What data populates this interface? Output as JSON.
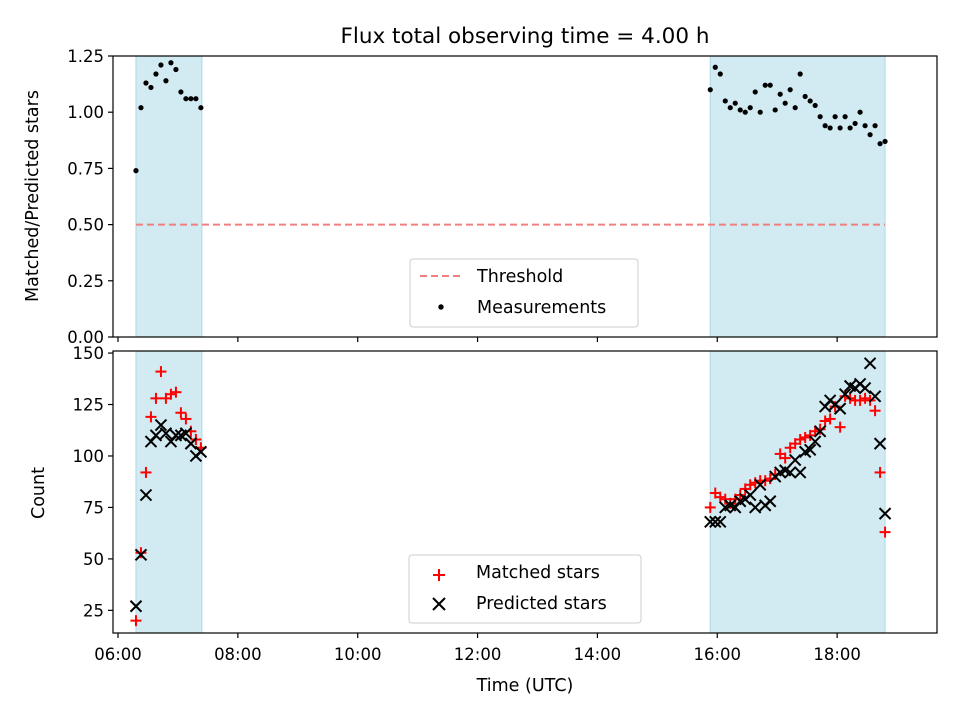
{
  "title": "Flux total observing time = 4.00 h",
  "colors": {
    "shade": "#add8e6",
    "threshold": "#f08080",
    "matched": "#ff0000",
    "predicted": "#000000",
    "measurement": "#000000"
  },
  "chart_data": [
    {
      "type": "scatter",
      "panel": "top",
      "ylabel": "Matched/Predicted stars",
      "ylim": [
        0,
        1.25
      ],
      "yticks": [
        0,
        0.25,
        0.5,
        0.75,
        1.0,
        1.25
      ],
      "ytick_labels": [
        "0.00",
        "0.25",
        "0.50",
        "0.75",
        "1.00",
        "1.25"
      ],
      "xlim": [
        "05:55",
        "19:40"
      ],
      "shaded_intervals": [
        [
          "06:18",
          "07:24"
        ],
        [
          "15:53",
          "18:48"
        ]
      ],
      "threshold": {
        "name": "Threshold",
        "value": 0.5,
        "x_range": [
          "06:18",
          "18:48"
        ],
        "style": "dashed"
      },
      "legend": {
        "position": "lower center",
        "entries": [
          "Threshold",
          "Measurements"
        ]
      },
      "series": [
        {
          "name": "Measurements",
          "marker": "dot",
          "points": [
            [
              "06:18",
              0.74
            ],
            [
              "06:23",
              1.02
            ],
            [
              "06:28",
              1.13
            ],
            [
              "06:33",
              1.11
            ],
            [
              "06:38",
              1.17
            ],
            [
              "06:43",
              1.21
            ],
            [
              "06:48",
              1.14
            ],
            [
              "06:53",
              1.22
            ],
            [
              "06:58",
              1.19
            ],
            [
              "07:03",
              1.09
            ],
            [
              "07:08",
              1.06
            ],
            [
              "07:13",
              1.06
            ],
            [
              "07:18",
              1.06
            ],
            [
              "07:23",
              1.02
            ],
            [
              "15:53",
              1.1
            ],
            [
              "15:58",
              1.2
            ],
            [
              "16:03",
              1.17
            ],
            [
              "16:08",
              1.05
            ],
            [
              "16:13",
              1.02
            ],
            [
              "16:18",
              1.04
            ],
            [
              "16:23",
              1.01
            ],
            [
              "16:28",
              1.0
            ],
            [
              "16:33",
              1.02
            ],
            [
              "16:38",
              1.09
            ],
            [
              "16:43",
              1.0
            ],
            [
              "16:48",
              1.12
            ],
            [
              "16:53",
              1.12
            ],
            [
              "16:58",
              1.01
            ],
            [
              "17:03",
              1.08
            ],
            [
              "17:08",
              1.04
            ],
            [
              "17:13",
              1.1
            ],
            [
              "17:18",
              1.02
            ],
            [
              "17:23",
              1.17
            ],
            [
              "17:28",
              1.07
            ],
            [
              "17:33",
              1.05
            ],
            [
              "17:38",
              1.03
            ],
            [
              "17:43",
              0.98
            ],
            [
              "17:48",
              0.94
            ],
            [
              "17:53",
              0.93
            ],
            [
              "17:58",
              0.98
            ],
            [
              "18:03",
              0.93
            ],
            [
              "18:08",
              0.98
            ],
            [
              "18:13",
              0.93
            ],
            [
              "18:18",
              0.95
            ],
            [
              "18:23",
              1.0
            ],
            [
              "18:28",
              0.94
            ],
            [
              "18:33",
              0.9
            ],
            [
              "18:38",
              0.94
            ],
            [
              "18:43",
              0.86
            ],
            [
              "18:48",
              0.87
            ]
          ]
        }
      ]
    },
    {
      "type": "scatter",
      "panel": "bottom",
      "xlabel": "Time (UTC)",
      "ylabel": "Count",
      "ylim": [
        14,
        151
      ],
      "yticks": [
        25,
        50,
        75,
        100,
        125,
        150
      ],
      "ytick_labels": [
        "25",
        "50",
        "75",
        "100",
        "125",
        "150"
      ],
      "xlim": [
        "05:55",
        "19:40"
      ],
      "xticks": [
        "06:00",
        "08:00",
        "10:00",
        "12:00",
        "14:00",
        "16:00",
        "18:00"
      ],
      "xtick_labels": [
        "06:00",
        "08:00",
        "10:00",
        "12:00",
        "14:00",
        "16:00",
        "18:00"
      ],
      "shaded_intervals": [
        [
          "06:18",
          "07:24"
        ],
        [
          "15:53",
          "18:48"
        ]
      ],
      "legend": {
        "position": "lower center",
        "entries": [
          "Matched stars",
          "Predicted stars"
        ]
      },
      "series": [
        {
          "name": "Matched stars",
          "marker": "plus",
          "points": [
            [
              "06:18",
              20
            ],
            [
              "06:23",
              53
            ],
            [
              "06:28",
              92
            ],
            [
              "06:33",
              119
            ],
            [
              "06:38",
              128
            ],
            [
              "06:43",
              141
            ],
            [
              "06:48",
              128
            ],
            [
              "06:53",
              130
            ],
            [
              "06:58",
              131
            ],
            [
              "07:03",
              121
            ],
            [
              "07:08",
              118
            ],
            [
              "07:13",
              112
            ],
            [
              "07:18",
              108
            ],
            [
              "07:23",
              104
            ],
            [
              "15:53",
              75
            ],
            [
              "15:58",
              82
            ],
            [
              "16:03",
              80
            ],
            [
              "16:08",
              79
            ],
            [
              "16:13",
              77
            ],
            [
              "16:18",
              79
            ],
            [
              "16:23",
              81
            ],
            [
              "16:28",
              84
            ],
            [
              "16:33",
              86
            ],
            [
              "16:38",
              87
            ],
            [
              "16:43",
              88
            ],
            [
              "16:48",
              88
            ],
            [
              "16:53",
              89
            ],
            [
              "16:58",
              91
            ],
            [
              "17:03",
              101
            ],
            [
              "17:08",
              99
            ],
            [
              "17:13",
              104
            ],
            [
              "17:18",
              106
            ],
            [
              "17:23",
              108
            ],
            [
              "17:28",
              109
            ],
            [
              "17:33",
              110
            ],
            [
              "17:38",
              112
            ],
            [
              "17:43",
              113
            ],
            [
              "17:48",
              117
            ],
            [
              "17:53",
              118
            ],
            [
              "17:58",
              124
            ],
            [
              "18:03",
              114
            ],
            [
              "18:08",
              129
            ],
            [
              "18:13",
              128
            ],
            [
              "18:18",
              127
            ],
            [
              "18:23",
              127
            ],
            [
              "18:28",
              128
            ],
            [
              "18:33",
              127
            ],
            [
              "18:38",
              122
            ],
            [
              "18:43",
              92
            ],
            [
              "18:48",
              63
            ]
          ]
        },
        {
          "name": "Predicted stars",
          "marker": "x",
          "points": [
            [
              "06:18",
              27
            ],
            [
              "06:23",
              52
            ],
            [
              "06:28",
              81
            ],
            [
              "06:33",
              107
            ],
            [
              "06:38",
              110
            ],
            [
              "06:43",
              115
            ],
            [
              "06:48",
              111
            ],
            [
              "06:53",
              107
            ],
            [
              "06:58",
              110
            ],
            [
              "07:03",
              110
            ],
            [
              "07:08",
              111
            ],
            [
              "07:13",
              106
            ],
            [
              "07:18",
              100
            ],
            [
              "07:23",
              102
            ],
            [
              "15:53",
              68
            ],
            [
              "15:58",
              68
            ],
            [
              "16:03",
              68
            ],
            [
              "16:08",
              75
            ],
            [
              "16:13",
              76
            ],
            [
              "16:18",
              75
            ],
            [
              "16:23",
              78
            ],
            [
              "16:28",
              79
            ],
            [
              "16:33",
              81
            ],
            [
              "16:38",
              75
            ],
            [
              "16:43",
              86
            ],
            [
              "16:48",
              76
            ],
            [
              "16:53",
              78
            ],
            [
              "16:58",
              90
            ],
            [
              "17:03",
              92
            ],
            [
              "17:08",
              93
            ],
            [
              "17:13",
              92
            ],
            [
              "17:18",
              98
            ],
            [
              "17:23",
              92
            ],
            [
              "17:28",
              102
            ],
            [
              "17:33",
              103
            ],
            [
              "17:38",
              107
            ],
            [
              "17:43",
              112
            ],
            [
              "17:48",
              124
            ],
            [
              "17:53",
              127
            ],
            [
              "17:58",
              125
            ],
            [
              "18:03",
              123
            ],
            [
              "18:08",
              130
            ],
            [
              "18:13",
              134
            ],
            [
              "18:18",
              133
            ],
            [
              "18:23",
              135
            ],
            [
              "18:28",
              133
            ],
            [
              "18:33",
              145
            ],
            [
              "18:38",
              129
            ],
            [
              "18:43",
              106
            ],
            [
              "18:48",
              72
            ]
          ]
        }
      ]
    }
  ]
}
